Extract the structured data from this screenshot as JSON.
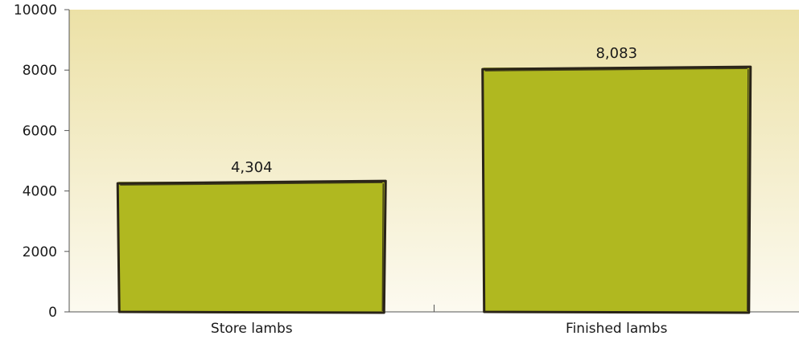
{
  "chart_data": {
    "type": "bar",
    "title": "",
    "xlabel": "",
    "ylabel": "",
    "categories": [
      "Store lambs",
      "Finished lambs"
    ],
    "values": [
      4304,
      8083
    ],
    "data_labels": [
      "4,304",
      "8,083"
    ],
    "ylim": [
      0,
      10000
    ],
    "yticks": [
      0,
      2000,
      4000,
      6000,
      8000,
      10000
    ],
    "grid": false,
    "legend": "none",
    "colors": {
      "bar_fill": "#b0b820",
      "bar_outline": "#2a2418",
      "plot_bg_top": "#ece1a6",
      "plot_bg_bottom": "#fcfaf0",
      "axis": "#555555"
    }
  }
}
